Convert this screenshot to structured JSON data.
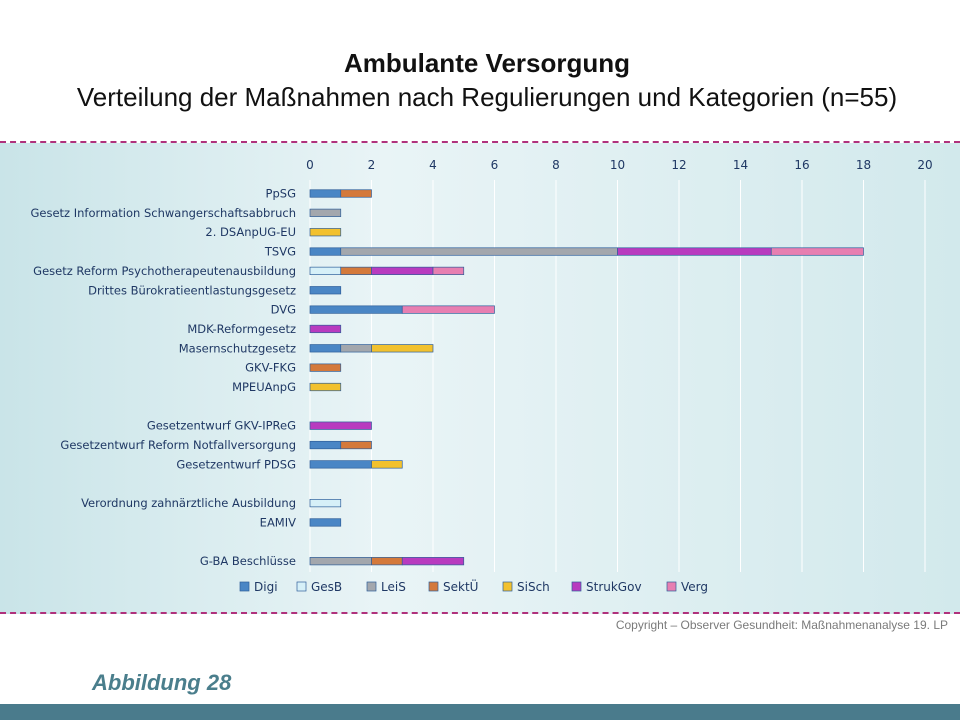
{
  "title": "Ambulante Versorgung",
  "subtitle": "Verteilung der Maßnahmen nach Regulierungen und Kategorien (n=55)",
  "copyright": "Copyright – Observer Gesundheit: Maßnahmenanalyse 19. LP",
  "figure_label": "Abbildung 28",
  "chart_data": {
    "type": "bar",
    "orientation": "horizontal",
    "stacked": true,
    "x_axis_position": "top",
    "xlim": [
      0,
      20
    ],
    "x_ticks": [
      0,
      2,
      4,
      6,
      8,
      10,
      12,
      14,
      16,
      18,
      20
    ],
    "grid": true,
    "legend_position": "bottom",
    "categories": [
      "PpSG",
      "Gesetz Information Schwangerschaftsabbruch",
      "2. DSAnpUG-EU",
      "TSVG",
      "Gesetz Reform Psychotherapeutenausbildung",
      "Drittes Bürokratieentlastungsgesetz",
      "DVG",
      "MDK-Reformgesetz",
      "Masernschutzgesetz",
      "GKV-FKG",
      "MPEUAnpG",
      "",
      "Gesetzentwurf GKV-IPReG",
      "Gesetzentwurf Reform Notfallversorgung",
      "Gesetzentwurf PDSG",
      "",
      "Verordnung zahnärztliche Ausbildung",
      "EAMIV",
      "",
      "G-BA Beschlüsse"
    ],
    "series": [
      {
        "name": "Digi",
        "color": "#4a86c5",
        "values": [
          1,
          0,
          0,
          1,
          0,
          1,
          3,
          0,
          1,
          0,
          0,
          0,
          0,
          1,
          2,
          0,
          0,
          1,
          0,
          0
        ]
      },
      {
        "name": "GesB",
        "color": "#d6f0f8",
        "values": [
          0,
          0,
          0,
          0,
          1,
          0,
          0,
          0,
          0,
          0,
          0,
          0,
          0,
          0,
          0,
          0,
          1,
          0,
          0,
          0
        ]
      },
      {
        "name": "LeiS",
        "color": "#a3a7ad",
        "values": [
          0,
          1,
          0,
          9,
          0,
          0,
          0,
          0,
          1,
          0,
          0,
          0,
          0,
          0,
          0,
          0,
          0,
          0,
          0,
          2
        ]
      },
      {
        "name": "SektÜ",
        "color": "#d4793b",
        "values": [
          1,
          0,
          0,
          0,
          1,
          0,
          0,
          0,
          0,
          1,
          0,
          0,
          0,
          1,
          0,
          0,
          0,
          0,
          0,
          1
        ]
      },
      {
        "name": "SiSch",
        "color": "#f2c12e",
        "values": [
          0,
          0,
          1,
          0,
          0,
          0,
          0,
          0,
          2,
          0,
          1,
          0,
          0,
          0,
          1,
          0,
          0,
          0,
          0,
          0
        ]
      },
      {
        "name": "StrukGov",
        "color": "#b83bbf",
        "values": [
          0,
          0,
          0,
          5,
          2,
          0,
          0,
          1,
          0,
          0,
          0,
          0,
          2,
          0,
          0,
          0,
          0,
          0,
          0,
          2
        ]
      },
      {
        "name": "Verg",
        "color": "#e77fb1",
        "values": [
          0,
          0,
          0,
          3,
          1,
          0,
          3,
          0,
          0,
          0,
          0,
          0,
          0,
          0,
          0,
          0,
          0,
          0,
          0,
          0
        ]
      }
    ]
  }
}
